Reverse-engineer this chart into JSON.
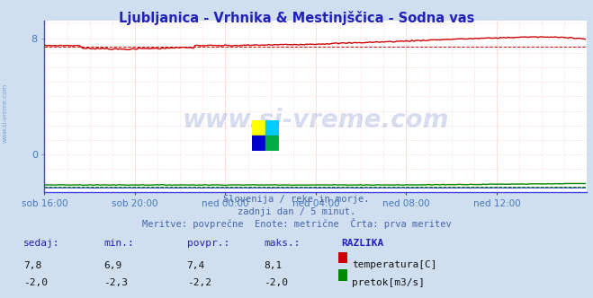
{
  "title": "Ljubljanica - Vrhnika & Mestinjščica - Sodna vas",
  "title_color": "#2222bb",
  "bg_color": "#d0dff0",
  "plot_bg_color": "#ffffff",
  "grid_color_v": "#ffbbbb",
  "grid_color_h": "#ffbbbb",
  "xlabel_color": "#4477bb",
  "watermark_text": "www.si-vreme.com",
  "watermark_color": "#2244aa",
  "watermark_alpha": 0.18,
  "x_ticks_labels": [
    "sob 16:00",
    "sob 20:00",
    "ned 00:00",
    "ned 04:00",
    "ned 08:00",
    "ned 12:00"
  ],
  "x_ticks_pos": [
    0,
    48,
    96,
    144,
    192,
    240
  ],
  "x_max": 288,
  "y_min": -2.6,
  "y_max": 9.2,
  "y_ticks": [
    0,
    8
  ],
  "temp_avg": 7.4,
  "temp_color": "#cc0000",
  "pretok_avg": -2.2,
  "pretok_color": "#008800",
  "blue_line_color": "#3333cc",
  "blue_avg_color": "#aaaaff",
  "subtitle_lines": [
    "Slovenija / reke in morje.",
    "zadnji dan / 5 minut.",
    "Meritve: povprečne  Enote: metrične  Črta: prva meritev"
  ],
  "subtitle_color": "#4466aa",
  "table_header": [
    "sedaj:",
    "min.:",
    "povpr.:",
    "maks.:",
    "RAZLIKA"
  ],
  "table_data": [
    [
      "7,8",
      "6,9",
      "7,4",
      "8,1"
    ],
    [
      "-2,0",
      "-2,3",
      "-2,2",
      "-2,0"
    ]
  ],
  "legend_labels": [
    "temperatura[C]",
    "pretok[m3/s]"
  ],
  "legend_colors": [
    "#cc0000",
    "#008800"
  ],
  "table_color": "#2222bb",
  "logo_colors": [
    "#ffff00",
    "#00ccff",
    "#0000cc",
    "#00aa44"
  ]
}
